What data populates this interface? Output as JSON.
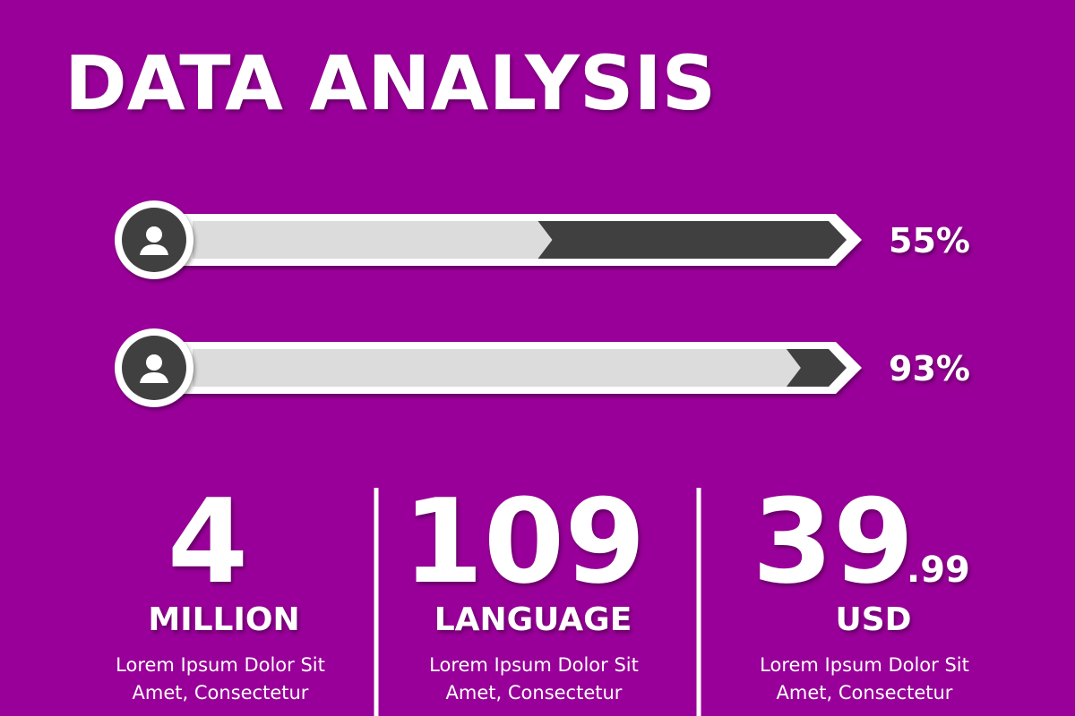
{
  "title": "DATA ANALYSIS",
  "progress": {
    "values": [
      55,
      93
    ],
    "value_labels": [
      "55%",
      "93%"
    ],
    "xlim": [
      0,
      100
    ]
  },
  "stats": [
    {
      "number": "4",
      "unit": "MILLION",
      "text": [
        "Lorem Ipsum Dolor Sit",
        "Amet, Consectetur"
      ]
    },
    {
      "number": "109",
      "unit": "LANGUAGE",
      "text": [
        "Lorem Ipsum Dolor Sit",
        "Amet, Consectetur"
      ]
    },
    {
      "number": "39",
      "decimal": ".99",
      "unit": "USD",
      "text": [
        "Lorem Ipsum Dolor Sit",
        "Amet, Consectetur"
      ]
    }
  ]
}
